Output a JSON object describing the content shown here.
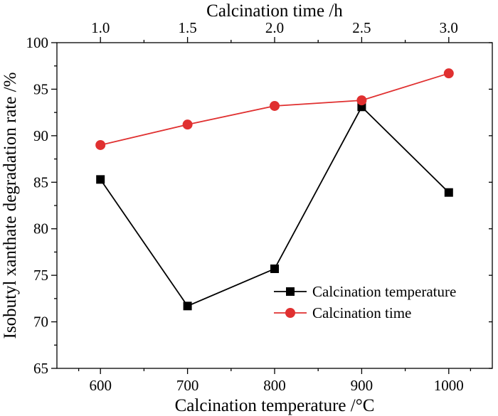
{
  "chart_data": {
    "type": "line",
    "title": "",
    "xlabel": "Calcination temperature /°C",
    "x2label": "Calcination time /h",
    "ylabel": "Isobutyl xanthate degradation rate /%",
    "xlim": [
      550,
      1050
    ],
    "x2lim": [
      0.75,
      3.25
    ],
    "ylim": [
      65,
      100
    ],
    "grid": false,
    "legend_position": "bottom-right",
    "x_ticks": [
      600,
      700,
      800,
      900,
      1000
    ],
    "x2_ticks": [
      "1.0",
      "1.5",
      "2.0",
      "2.5",
      "3.0"
    ],
    "y_ticks": [
      65,
      70,
      75,
      80,
      85,
      90,
      95,
      100
    ],
    "series": [
      {
        "name": "Calcination temperature",
        "axis": "bottom",
        "marker": "square",
        "color": "#000000",
        "x": [
          600,
          700,
          800,
          900,
          1000
        ],
        "values": [
          85.3,
          71.7,
          75.7,
          93.1,
          83.9
        ]
      },
      {
        "name": "Calcination time",
        "axis": "top",
        "marker": "circle",
        "color": "#e03030",
        "x": [
          1.0,
          1.5,
          2.0,
          2.5,
          3.0
        ],
        "values": [
          89.0,
          91.2,
          93.2,
          93.8,
          96.7
        ]
      }
    ]
  }
}
